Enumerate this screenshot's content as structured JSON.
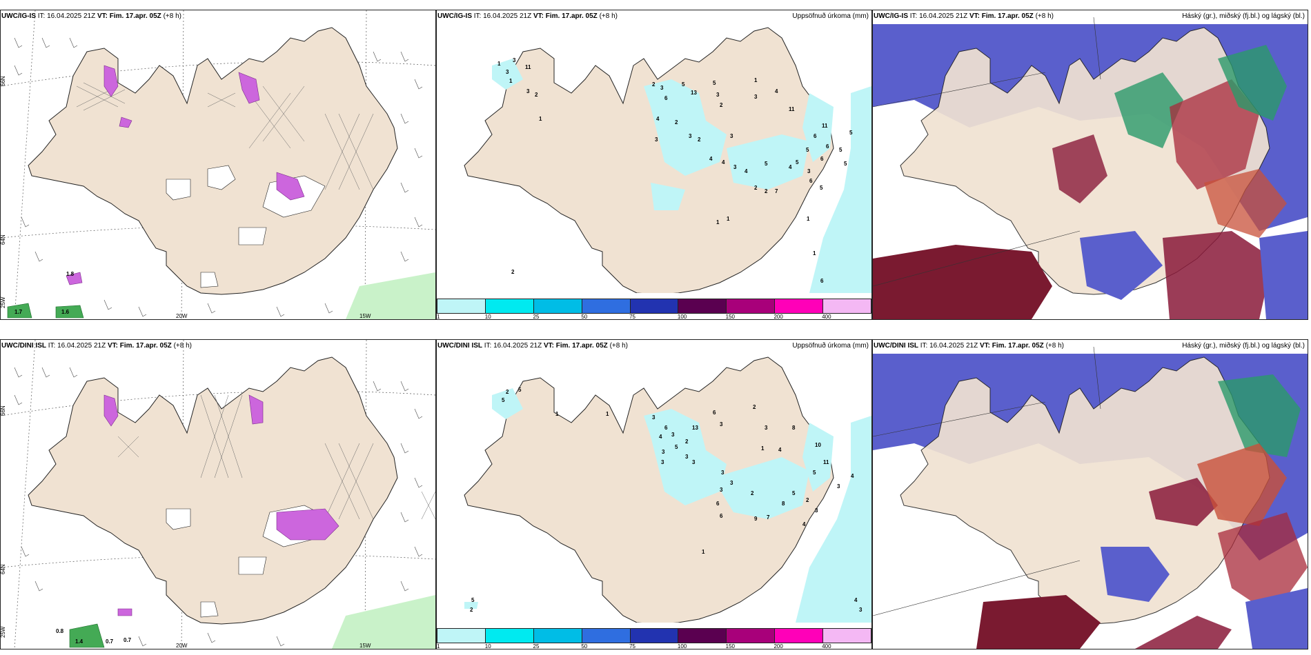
{
  "rows": [
    {
      "wind": {
        "model": "UWC/IG-IS",
        "it_label": "IT:",
        "it_value": "16.04.2025 21Z",
        "vt_label": "VT:",
        "vt_value": "Fim. 17.apr. 05Z",
        "lead": "(+8 h)"
      },
      "precip": {
        "model": "UWC/IG-IS",
        "it_label": "IT:",
        "it_value": "16.04.2025 21Z",
        "vt_label": "VT:",
        "vt_value": "Fim. 17.apr. 05Z",
        "lead": "(+8 h)",
        "title": "Uppsöfnuð úrkoma (mm)"
      },
      "cloud": {
        "model": "UWC/IG-IS",
        "it_label": "IT:",
        "it_value": "16.04.2025 21Z",
        "vt_label": "VT:",
        "vt_value": "Fim. 17.apr. 05Z",
        "lead": "(+8 h)",
        "title": "Háský (gr.), miðský (fj.bl.) og lágský (bl.)"
      }
    },
    {
      "wind": {
        "model": "UWC/DINI ISL",
        "it_label": "IT:",
        "it_value": "16.04.2025 21Z",
        "vt_label": "VT:",
        "vt_value": "Fim. 17.apr. 05Z",
        "lead": "(+8 h)"
      },
      "precip": {
        "model": "UWC/DINI ISL",
        "it_label": "IT:",
        "it_value": "16.04.2025 21Z",
        "vt_label": "VT:",
        "vt_value": "Fim. 17.apr. 05Z",
        "lead": "(+8 h)",
        "title": "Uppsöfnuð úrkoma (mm)"
      },
      "cloud": {
        "model": "UWC/DINI ISL",
        "it_label": "IT:",
        "it_value": "16.04.2025 21Z",
        "vt_label": "VT:",
        "vt_value": "Fim. 17.apr. 05Z",
        "lead": "(+8 h)",
        "title": "Háský (gr.), miðský (fj.bl.) og lágský (bl.)"
      }
    }
  ],
  "grid_labels": {
    "lat66": "66N",
    "lat64": "64N",
    "lon25": "25W",
    "lon20": "20W",
    "lon15": "15W"
  },
  "wind_values": {
    "top": [
      "1.8",
      "1.7",
      "1.6"
    ],
    "bottom": [
      "0.8",
      "1.4",
      "0.7",
      "0.7"
    ]
  },
  "precip_values": {
    "top": [
      "1",
      "3",
      "3",
      "11",
      "1",
      "2",
      "3",
      "1",
      "2",
      "3",
      "6",
      "5",
      "13",
      "5",
      "1",
      "3",
      "2",
      "3",
      "4",
      "2",
      "4",
      "11",
      "3",
      "3",
      "2",
      "3",
      "11",
      "6",
      "6",
      "5",
      "4",
      "4",
      "3",
      "4",
      "5",
      "5",
      "6",
      "5",
      "4",
      "3",
      "6",
      "5",
      "5",
      "2",
      "2",
      "7",
      "1",
      "1",
      "1",
      "1",
      "2",
      "5",
      "6"
    ],
    "bottom": [
      "2",
      "5",
      "5",
      "1",
      "1",
      "3",
      "6",
      "4",
      "3",
      "6",
      "13",
      "2",
      "3",
      "5",
      "3",
      "2",
      "3",
      "3",
      "3",
      "3",
      "1",
      "3",
      "3",
      "8",
      "4",
      "10",
      "11",
      "3",
      "6",
      "5",
      "2",
      "3",
      "5",
      "2",
      "3",
      "8",
      "6",
      "9",
      "7",
      "1",
      "4",
      "4",
      "5",
      "2",
      "4",
      "3"
    ]
  },
  "colorbar": {
    "labels": [
      "1",
      "10",
      "25",
      "50",
      "75",
      "100",
      "150",
      "200",
      "400"
    ],
    "colors": [
      "#bff5f7",
      "#00eaf0",
      "#00bde6",
      "#2f6ee0",
      "#2233b0",
      "#5a0050",
      "#a8007a",
      "#ff00b8",
      "#f4b8f4"
    ]
  },
  "colors": {
    "land": "#f0e2d2",
    "sea": "#ffffff",
    "coast": "#222222"
  }
}
